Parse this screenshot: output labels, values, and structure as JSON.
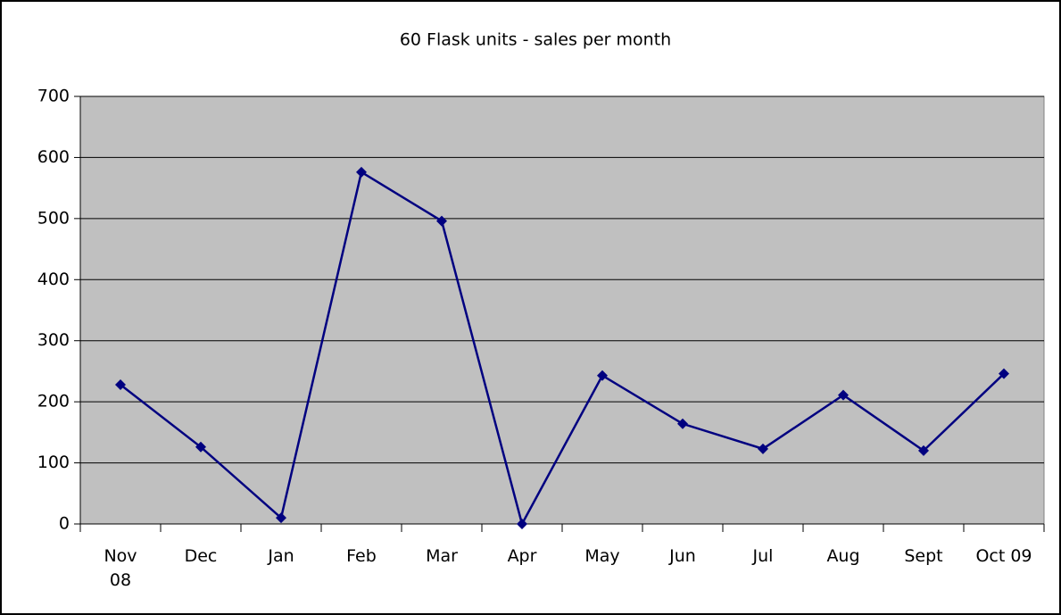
{
  "chart_data": {
    "type": "line",
    "title": "60 Flask units - sales per month",
    "categories": [
      "Nov 08",
      "Dec",
      "Jan",
      "Feb",
      "Mar",
      "Apr",
      "May",
      "Jun",
      "Jul",
      "Aug",
      "Sept",
      "Oct 09"
    ],
    "series": [
      {
        "name": "60 Flask units",
        "color": "#000080",
        "values": [
          228,
          126,
          10,
          576,
          496,
          0,
          243,
          164,
          123,
          211,
          120,
          246
        ]
      }
    ],
    "ylim": [
      0,
      700
    ],
    "yticks": [
      0,
      100,
      200,
      300,
      400,
      500,
      600,
      700
    ],
    "grid": true,
    "plot_background": "#c0c0c0"
  }
}
